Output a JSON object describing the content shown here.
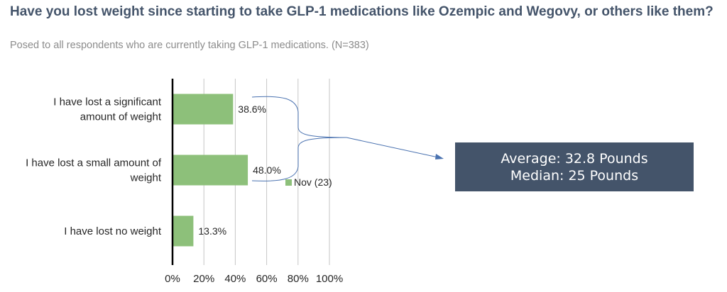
{
  "title": "Have you lost weight since starting to take GLP-1 medications like Ozempic and Wegovy, or others like them?",
  "subtitle": "Posed to all respondents who are currently taking GLP-1 medications. (N=383)",
  "callout": {
    "line1": "Average: 32.8 Pounds",
    "line2": "Median: 25 Pounds"
  },
  "colors": {
    "bar": "#8dc07a",
    "title": "#44546a",
    "callout_bg": "#44546a"
  },
  "chart_data": {
    "type": "bar",
    "orientation": "horizontal",
    "categories": [
      [
        "I have lost a significant",
        "amount of weight"
      ],
      [
        "I have lost a small amount of",
        "weight"
      ],
      [
        "I have lost no weight"
      ]
    ],
    "series": [
      {
        "name": "Nov (23)",
        "values": [
          38.6,
          48.0,
          13.3
        ]
      }
    ],
    "value_labels": [
      "38.6%",
      "48.0%",
      "13.3%"
    ],
    "xlim": [
      0,
      100
    ],
    "x_ticks": [
      "0%",
      "20%",
      "40%",
      "60%",
      "80%",
      "100%"
    ],
    "grid": true,
    "legend": "Nov (23)"
  }
}
